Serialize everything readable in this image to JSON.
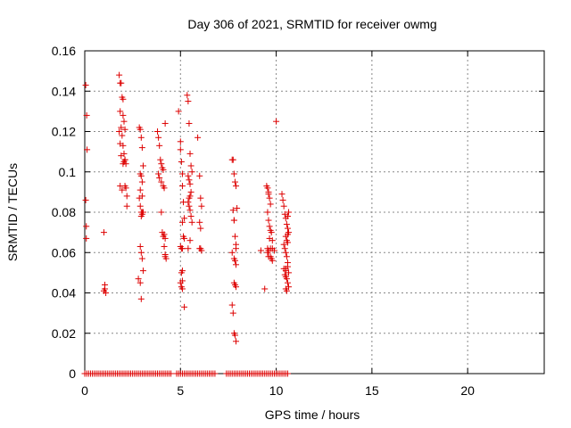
{
  "chart_data": {
    "type": "scatter",
    "title": "Day 306 of 2021, SRMTID for receiver owmg",
    "xlabel": "GPS time / hours",
    "ylabel": "SRMTID / TECUs",
    "xlim": [
      0,
      24
    ],
    "ylim": [
      0,
      0.16
    ],
    "xticks": [
      0,
      5,
      10,
      15,
      20
    ],
    "yticks": [
      0,
      0.02,
      0.04,
      0.06,
      0.08,
      0.1,
      0.12,
      0.14,
      0.16
    ],
    "xtick_labels": [
      "0",
      "5",
      "10",
      "15",
      "20"
    ],
    "ytick_labels": [
      "0",
      "0.02",
      "0.04",
      "0.06",
      "0.08",
      "0.1",
      "0.12",
      "0.14",
      "0.16"
    ],
    "grid": true,
    "marker": "+",
    "color": "#dd0000",
    "series": [
      {
        "name": "owmg",
        "x": [
          0.05,
          0.05,
          0.08,
          0.08,
          0.1,
          0.12,
          1.0,
          1.0,
          1.05,
          1.1,
          1.05,
          1.8,
          1.85,
          1.9,
          1.95,
          2.0,
          2.0,
          2.05,
          2.1,
          1.85,
          1.9,
          1.95,
          2.0,
          2.05,
          2.1,
          2.15,
          1.8,
          1.85,
          1.9,
          2.0,
          2.05,
          2.1,
          1.85,
          1.95,
          2.1,
          2.15,
          2.2,
          2.2,
          2.85,
          2.9,
          2.95,
          3.0,
          3.05,
          2.9,
          2.95,
          3.0,
          2.9,
          3.0,
          2.85,
          2.9,
          2.95,
          3.0,
          2.95,
          3.05,
          2.9,
          2.95,
          3.0,
          3.05,
          2.8,
          2.9,
          2.95,
          3.0,
          3.8,
          3.85,
          3.9,
          3.95,
          4.0,
          4.05,
          4.1,
          3.85,
          3.9,
          4.0,
          4.1,
          4.15,
          4.2,
          4.0,
          4.05,
          4.1,
          4.15,
          4.2,
          4.25,
          4.15,
          4.2,
          4.2,
          4.9,
          5.0,
          5.0,
          5.05,
          5.1,
          5.1,
          5.15,
          5.2,
          5.1,
          5.15,
          5.2,
          5.0,
          5.05,
          5.1,
          5.05,
          5.1,
          5.0,
          5.05,
          5.1,
          5.2,
          5.1,
          5.35,
          5.4,
          5.45,
          5.5,
          5.55,
          5.6,
          5.4,
          5.45,
          5.5,
          5.55,
          5.5,
          5.45,
          5.4,
          5.45,
          5.5,
          5.55,
          5.6,
          5.4,
          5.5,
          5.9,
          6.0,
          6.05,
          6.1,
          6.0,
          6.05,
          6.0,
          6.05,
          6.1,
          7.7,
          7.75,
          7.8,
          7.85,
          7.9,
          7.95,
          7.75,
          7.8,
          7.85,
          7.9,
          7.7,
          7.8,
          7.9,
          7.8,
          7.85,
          7.9,
          7.7,
          7.75,
          7.8,
          7.85,
          7.9,
          7.9,
          7.85,
          7.8,
          9.2,
          9.4,
          9.5,
          9.55,
          9.6,
          9.6,
          9.65,
          9.7,
          9.55,
          9.6,
          9.65,
          9.7,
          9.75,
          9.8,
          9.55,
          9.6,
          9.7,
          9.75,
          9.8,
          9.55,
          9.6,
          9.7,
          9.8,
          10.0,
          9.9,
          9.65,
          10.3,
          10.35,
          10.4,
          10.45,
          10.5,
          10.55,
          10.6,
          10.65,
          10.5,
          10.55,
          10.6,
          10.4,
          10.45,
          10.5,
          10.55,
          10.6,
          10.4,
          10.5,
          10.6,
          10.65,
          10.45,
          10.5,
          10.55,
          10.6,
          10.65,
          10.5,
          10.55,
          10.6,
          10.65,
          10.5,
          10.6
        ],
        "y": [
          0.143,
          0.086,
          0.073,
          0.067,
          0.128,
          0.111,
          0.07,
          0.041,
          0.044,
          0.04,
          0.042,
          0.148,
          0.144,
          0.144,
          0.137,
          0.136,
          0.128,
          0.125,
          0.121,
          0.13,
          0.122,
          0.118,
          0.113,
          0.109,
          0.106,
          0.104,
          0.12,
          0.114,
          0.108,
          0.104,
          0.105,
          0.106,
          0.093,
          0.091,
          0.093,
          0.092,
          0.088,
          0.083,
          0.122,
          0.121,
          0.117,
          0.112,
          0.103,
          0.099,
          0.098,
          0.095,
          0.091,
          0.088,
          0.087,
          0.083,
          0.08,
          0.079,
          0.078,
          0.08,
          0.063,
          0.06,
          0.057,
          0.051,
          0.047,
          0.045,
          0.037,
          0.08,
          0.12,
          0.117,
          0.113,
          0.106,
          0.104,
          0.102,
          0.101,
          0.099,
          0.097,
          0.095,
          0.093,
          0.092,
          0.124,
          0.08,
          0.07,
          0.068,
          0.063,
          0.059,
          0.057,
          0.069,
          0.067,
          0.058,
          0.13,
          0.115,
          0.111,
          0.105,
          0.099,
          0.093,
          0.085,
          0.077,
          0.075,
          0.068,
          0.067,
          0.063,
          0.062,
          0.051,
          0.05,
          0.046,
          0.045,
          0.043,
          0.042,
          0.033,
          0.062,
          0.138,
          0.135,
          0.124,
          0.109,
          0.103,
          0.1,
          0.098,
          0.096,
          0.094,
          0.09,
          0.088,
          0.087,
          0.085,
          0.083,
          0.081,
          0.078,
          0.075,
          0.062,
          0.066,
          0.117,
          0.098,
          0.087,
          0.083,
          0.075,
          0.072,
          0.062,
          0.062,
          0.061,
          0.106,
          0.106,
          0.099,
          0.095,
          0.093,
          0.082,
          0.081,
          0.076,
          0.068,
          0.064,
          0.06,
          0.057,
          0.054,
          0.045,
          0.044,
          0.043,
          0.034,
          0.03,
          0.02,
          0.019,
          0.016,
          0.062,
          0.056,
          0.076,
          0.061,
          0.042,
          0.093,
          0.092,
          0.09,
          0.089,
          0.087,
          0.084,
          0.08,
          0.076,
          0.073,
          0.071,
          0.07,
          0.066,
          0.062,
          0.061,
          0.058,
          0.057,
          0.056,
          0.06,
          0.058,
          0.062,
          0.062,
          0.125,
          0.061,
          0.067,
          0.089,
          0.086,
          0.083,
          0.079,
          0.077,
          0.074,
          0.072,
          0.07,
          0.068,
          0.066,
          0.065,
          0.064,
          0.062,
          0.06,
          0.058,
          0.055,
          0.052,
          0.051,
          0.053,
          0.05,
          0.049,
          0.048,
          0.047,
          0.045,
          0.043,
          0.042,
          0.041,
          0.078,
          0.08,
          0.052,
          0.069
        ]
      },
      {
        "name": "zeros",
        "x_ranges": [
          [
            0.0,
            4.5
          ],
          [
            4.8,
            6.8
          ],
          [
            7.4,
            10.6
          ]
        ],
        "x_step": 0.1,
        "y_value": 0
      }
    ]
  }
}
